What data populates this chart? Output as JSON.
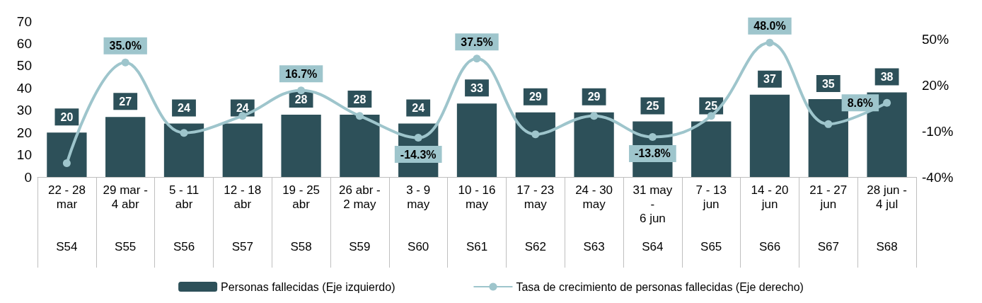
{
  "chart_data": {
    "type": "bar",
    "categories": [
      "22 - 28\nmar\n\n\nS54",
      "29 mar -\n4 abr\n\n\nS55",
      "5 - 11\nabr\n\n\nS56",
      "12 - 18\nabr\n\n\nS57",
      "19 - 25\nabr\n\n\nS58",
      "26 abr -\n2 may\n\n\nS59",
      "3 - 9\nmay\n\n\nS60",
      "10 - 16\nmay\n\n\nS61",
      "17 - 23\nmay\n\n\nS62",
      "24 - 30\nmay\n\n\nS63",
      "31 may\n-\n6 jun\n\nS64",
      "7 - 13\njun\n\n\nS65",
      "14 - 20\njun\n\n\nS66",
      "21 - 27\njun\n\n\nS67",
      "28 jun -\n4 jul\n\n\nS68"
    ],
    "series": [
      {
        "name": "Personas fallecidas (Eje izquierdo)",
        "color": "#2d5059",
        "values": [
          20,
          27,
          24,
          24,
          28,
          28,
          24,
          33,
          29,
          29,
          25,
          25,
          37,
          35,
          38
        ],
        "data_labels": true
      },
      {
        "name": "Tasa de crecimiento de personas fallecidas (Eje derecho)",
        "type": "line",
        "axis": "y2",
        "color": "#9ec5cc",
        "marker": "circle",
        "values": [
          -31,
          35.0,
          -11.1,
          0,
          16.7,
          0,
          -14.3,
          37.5,
          -12.1,
          0,
          -13.8,
          0,
          48.0,
          -5.4,
          8.6
        ],
        "value_labels": [
          null,
          "35.0%",
          null,
          null,
          "16.7%",
          null,
          "-14.3%",
          "37.5%",
          null,
          null,
          "-13.8%",
          null,
          "48.0%",
          null,
          "8.6%"
        ]
      }
    ],
    "ylim": [
      0,
      70
    ],
    "yticks": [
      0,
      10,
      20,
      30,
      40,
      50,
      60,
      70
    ],
    "y2lim": [
      -40,
      62
    ],
    "y2ticks": [
      {
        "value": -40,
        "label": "-40%"
      },
      {
        "value": -10,
        "label": "-10%"
      },
      {
        "value": 20,
        "label": "20%"
      },
      {
        "value": 50,
        "label": "50%"
      }
    ],
    "grid": false,
    "legend": "bottom"
  }
}
